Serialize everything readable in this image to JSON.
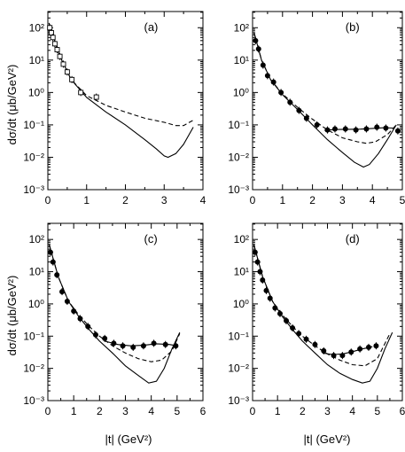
{
  "figure": {
    "ylabel": "dσ/dt  (μb/GeV²)",
    "xlabel": "|t|  (GeV²)"
  },
  "chart_data": [
    {
      "type": "scatter",
      "panel_label": "(a)",
      "xlim": [
        0,
        4
      ],
      "ylim_log10": [
        -3,
        2.5
      ],
      "yscale": "log",
      "xticks": [
        0,
        1,
        2,
        3,
        4
      ],
      "ytick_exponents": [
        -3,
        -2,
        -1,
        0,
        1,
        2
      ],
      "data": [
        [
          0.05,
          100
        ],
        [
          0.09,
          70
        ],
        [
          0.13,
          50
        ],
        [
          0.18,
          32
        ],
        [
          0.24,
          21
        ],
        [
          0.31,
          13
        ],
        [
          0.4,
          7.5
        ],
        [
          0.5,
          4.3
        ],
        [
          0.62,
          2.5
        ],
        [
          0.85,
          1.0
        ],
        [
          1.25,
          0.72
        ]
      ],
      "curves": [
        {
          "style": "dashed",
          "x": [
            0.03,
            0.3,
            0.6,
            1.0,
            1.5,
            2.0,
            2.5,
            3.0,
            3.3,
            3.5,
            3.75
          ],
          "y": [
            140,
            14,
            2.5,
            0.8,
            0.4,
            0.25,
            0.16,
            0.12,
            0.095,
            0.095,
            0.14
          ]
        },
        {
          "style": "solid",
          "x": [
            0.03,
            0.3,
            0.6,
            1.0,
            1.5,
            2.0,
            2.5,
            2.8,
            3.0,
            3.1,
            3.3,
            3.5,
            3.75
          ],
          "y": [
            140,
            14,
            2.5,
            0.7,
            0.25,
            0.1,
            0.035,
            0.018,
            0.011,
            0.01,
            0.013,
            0.025,
            0.085
          ]
        }
      ]
    },
    {
      "type": "scatter",
      "panel_label": "(b)",
      "xlim": [
        0,
        5
      ],
      "ylim_log10": [
        -3,
        2.5
      ],
      "yscale": "log",
      "xticks": [
        0,
        1,
        2,
        3,
        4,
        5
      ],
      "ytick_exponents": [
        -3,
        -2,
        -1,
        0,
        1,
        2
      ],
      "data": [
        [
          0.1,
          40
        ],
        [
          0.2,
          22
        ],
        [
          0.35,
          7
        ],
        [
          0.5,
          3.3
        ],
        [
          0.7,
          2.1
        ],
        [
          0.95,
          1.0
        ],
        [
          1.25,
          0.5
        ],
        [
          1.55,
          0.28
        ],
        [
          1.8,
          0.16
        ],
        [
          2.15,
          0.1
        ],
        [
          2.5,
          0.07
        ],
        [
          2.75,
          0.075
        ],
        [
          3.1,
          0.075
        ],
        [
          3.45,
          0.07
        ],
        [
          3.8,
          0.075
        ],
        [
          4.15,
          0.085
        ],
        [
          4.45,
          0.08
        ],
        [
          4.85,
          0.065
        ]
      ],
      "curves": [
        {
          "style": "dashed",
          "x": [
            0.05,
            0.3,
            0.6,
            1.0,
            1.5,
            2.0,
            2.5,
            3.0,
            3.5,
            3.8,
            4.1,
            4.5,
            4.8
          ],
          "y": [
            70,
            10,
            2.5,
            0.9,
            0.35,
            0.15,
            0.07,
            0.04,
            0.03,
            0.027,
            0.03,
            0.05,
            0.1
          ]
        },
        {
          "style": "solid",
          "x": [
            0.05,
            0.3,
            0.6,
            1.0,
            1.5,
            2.0,
            2.5,
            3.0,
            3.4,
            3.7,
            3.9,
            4.2,
            4.5,
            4.8
          ],
          "y": [
            70,
            10,
            2.5,
            0.85,
            0.3,
            0.1,
            0.035,
            0.014,
            0.007,
            0.005,
            0.006,
            0.013,
            0.035,
            0.1
          ]
        },
        {
          "style": "solid",
          "x": [
            2.4,
            2.8,
            3.2,
            3.6,
            4.0,
            4.4,
            4.7
          ],
          "y": [
            0.068,
            0.072,
            0.073,
            0.074,
            0.078,
            0.082,
            0.08
          ]
        }
      ]
    },
    {
      "type": "scatter",
      "panel_label": "(c)",
      "xlim": [
        0,
        6
      ],
      "ylim_log10": [
        -3,
        2.5
      ],
      "yscale": "log",
      "xticks": [
        0,
        1,
        2,
        3,
        4,
        5,
        6
      ],
      "ytick_exponents": [
        -3,
        -2,
        -1,
        0,
        1,
        2
      ],
      "data": [
        [
          0.1,
          40
        ],
        [
          0.2,
          20
        ],
        [
          0.35,
          8
        ],
        [
          0.55,
          2.4
        ],
        [
          0.75,
          1.2
        ],
        [
          1.0,
          0.6
        ],
        [
          1.25,
          0.35
        ],
        [
          1.55,
          0.2
        ],
        [
          1.85,
          0.11
        ],
        [
          2.2,
          0.085
        ],
        [
          2.55,
          0.06
        ],
        [
          2.9,
          0.05
        ],
        [
          3.3,
          0.045
        ],
        [
          3.7,
          0.05
        ],
        [
          4.1,
          0.06
        ],
        [
          4.55,
          0.055
        ],
        [
          4.95,
          0.05
        ]
      ],
      "curves": [
        {
          "style": "dashed",
          "x": [
            0.05,
            0.4,
            0.8,
            1.2,
            1.6,
            2.0,
            2.5,
            3.0,
            3.5,
            4.0,
            4.4,
            4.8,
            5.1
          ],
          "y": [
            70,
            7,
            1.2,
            0.45,
            0.2,
            0.1,
            0.05,
            0.03,
            0.02,
            0.016,
            0.018,
            0.035,
            0.12
          ]
        },
        {
          "style": "solid",
          "x": [
            0.05,
            0.4,
            0.8,
            1.2,
            1.6,
            2.0,
            2.5,
            3.0,
            3.5,
            3.9,
            4.2,
            4.5,
            4.8,
            5.1
          ],
          "y": [
            70,
            7,
            1.2,
            0.4,
            0.16,
            0.07,
            0.03,
            0.012,
            0.006,
            0.0035,
            0.004,
            0.01,
            0.04,
            0.13
          ]
        },
        {
          "style": "solid",
          "x": [
            2.2,
            2.7,
            3.2,
            3.7,
            4.2,
            4.7,
            5.0
          ],
          "y": [
            0.07,
            0.055,
            0.05,
            0.052,
            0.058,
            0.055,
            0.05
          ]
        }
      ]
    },
    {
      "type": "scatter",
      "panel_label": "(d)",
      "xlim": [
        0,
        6
      ],
      "ylim_log10": [
        -3,
        2.5
      ],
      "yscale": "log",
      "xticks": [
        0,
        1,
        2,
        3,
        4,
        5,
        6
      ],
      "ytick_exponents": [
        -3,
        -2,
        -1,
        0,
        1,
        2
      ],
      "data": [
        [
          0.1,
          40
        ],
        [
          0.2,
          20
        ],
        [
          0.3,
          10
        ],
        [
          0.4,
          5.5
        ],
        [
          0.55,
          2.6
        ],
        [
          0.7,
          1.5
        ],
        [
          0.9,
          0.75
        ],
        [
          1.1,
          0.5
        ],
        [
          1.35,
          0.3
        ],
        [
          1.6,
          0.18
        ],
        [
          1.85,
          0.12
        ],
        [
          2.15,
          0.08
        ],
        [
          2.5,
          0.055
        ],
        [
          2.85,
          0.035
        ],
        [
          3.25,
          0.025
        ],
        [
          3.6,
          0.025
        ],
        [
          3.95,
          0.032
        ],
        [
          4.3,
          0.04
        ],
        [
          4.65,
          0.045
        ],
        [
          4.95,
          0.05
        ]
      ],
      "curves": [
        {
          "style": "dashed",
          "x": [
            0.05,
            0.4,
            0.8,
            1.2,
            1.6,
            2.0,
            2.5,
            3.0,
            3.5,
            4.0,
            4.5,
            5.0,
            5.5
          ],
          "y": [
            70,
            7,
            1.2,
            0.45,
            0.2,
            0.1,
            0.05,
            0.028,
            0.018,
            0.013,
            0.012,
            0.02,
            0.12
          ]
        },
        {
          "style": "solid",
          "x": [
            0.05,
            0.4,
            0.8,
            1.2,
            1.6,
            2.0,
            2.5,
            3.0,
            3.5,
            4.0,
            4.4,
            4.7,
            5.0,
            5.3,
            5.6
          ],
          "y": [
            70,
            7,
            1.2,
            0.4,
            0.16,
            0.07,
            0.03,
            0.013,
            0.007,
            0.0045,
            0.0035,
            0.004,
            0.01,
            0.04,
            0.13
          ]
        },
        {
          "style": "solid",
          "x": [
            2.8,
            3.2,
            3.6,
            4.0,
            4.4,
            4.8
          ],
          "y": [
            0.03,
            0.027,
            0.028,
            0.033,
            0.04,
            0.047
          ]
        }
      ]
    }
  ]
}
